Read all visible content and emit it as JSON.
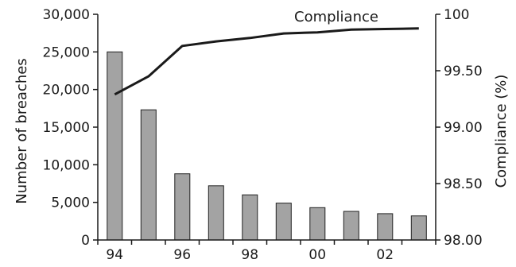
{
  "chart_data": {
    "type": "bar",
    "categories": [
      "94",
      "95",
      "96",
      "97",
      "98",
      "99",
      "00",
      "01",
      "02",
      "03"
    ],
    "x_tick_labels": [
      "94",
      "",
      "96",
      "",
      "98",
      "",
      "00",
      "",
      "02",
      ""
    ],
    "series": [
      {
        "type": "bar",
        "axis": "left",
        "values": [
          25000,
          17300,
          8800,
          7200,
          6000,
          4900,
          4300,
          3800,
          3500,
          3200
        ]
      },
      {
        "type": "line",
        "axis": "right",
        "name": "Compliance",
        "values": [
          99.29,
          99.45,
          99.72,
          99.76,
          99.79,
          99.83,
          99.84,
          99.865,
          99.87,
          99.875
        ]
      }
    ],
    "ylabel": "Number of breaches",
    "ylabel_right": "Compliance (%)",
    "ylim": [
      0,
      30000
    ],
    "ylim_right": [
      98.0,
      100.0
    ],
    "y_ticks": [
      "0",
      "5,000",
      "10,000",
      "15,000",
      "20,000",
      "25,000",
      "30,000"
    ],
    "y_ticks_right": [
      "98.00",
      "98.50",
      "99.00",
      "99.50",
      "100"
    ],
    "colors": {
      "bar": "#a3a3a3",
      "bar_stroke": "#222222",
      "line": "#1a1a1a"
    },
    "grid": false
  }
}
